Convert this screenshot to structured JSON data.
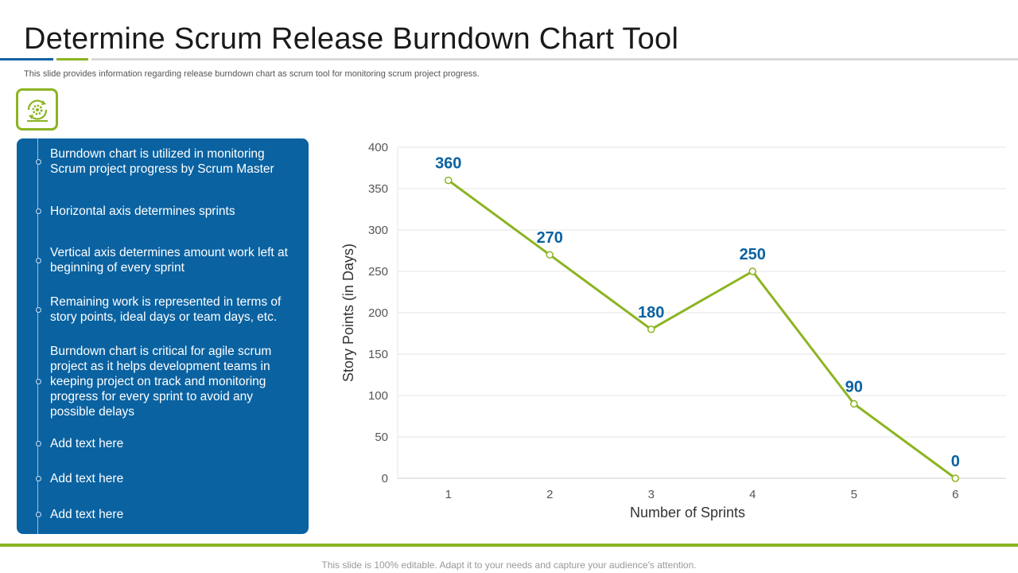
{
  "slide": {
    "title": "Determine Scrum Release Burndown Chart Tool",
    "subtitle": "This slide provides information regarding release burndown chart as scrum tool for monitoring scrum project progress.",
    "footer": "This slide is 100% editable. Adapt it to your needs and capture your audience's attention."
  },
  "panel": {
    "icon": "scrum-cycle-gear-icon",
    "bullets": [
      "Burndown chart is utilized in monitoring Scrum project progress by Scrum Master",
      "Horizontal axis determines sprints",
      "Vertical axis determines amount work left at beginning of every sprint",
      "Remaining work is represented in terms of story points, ideal days or team days, etc.",
      "Burndown chart is critical for agile scrum project as it helps development teams in keeping project on track and monitoring progress for every sprint to avoid any possible delays",
      "Add text here",
      "Add text here",
      "Add text here"
    ]
  },
  "colors": {
    "accent_blue": "#0a62a1",
    "accent_green": "#8cb422",
    "label_blue": "#0a62a1",
    "grid": "#e6e6e6"
  },
  "chart_data": {
    "type": "line",
    "title": "",
    "xlabel": "Number of Sprints",
    "ylabel": "Story Points (in Days)",
    "categories": [
      "1",
      "2",
      "3",
      "4",
      "5",
      "6"
    ],
    "series": [
      {
        "name": "Story Points",
        "values": [
          360,
          270,
          180,
          250,
          90,
          0
        ]
      }
    ],
    "data_labels": [
      "360",
      "270",
      "180",
      "250",
      "90",
      "0"
    ],
    "ylim": [
      0,
      400
    ],
    "yticks": [
      "0",
      "50",
      "100",
      "150",
      "200",
      "250",
      "300",
      "350",
      "400"
    ],
    "grid": true
  }
}
